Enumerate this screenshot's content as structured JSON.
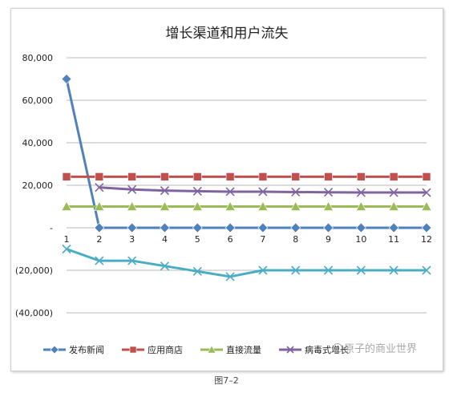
{
  "caption": "图7–2",
  "watermark_text": "原子的商业世界",
  "colors": {
    "background": "#ffffff",
    "grid": "#b8b8b8",
    "axis_text": "#222222"
  },
  "chart_data": {
    "type": "line",
    "title": "增长渠道和用户流失",
    "xlabel": "",
    "ylabel": "",
    "x": [
      1,
      2,
      3,
      4,
      5,
      6,
      7,
      8,
      9,
      10,
      11,
      12
    ],
    "x_tick_labels": [
      "1",
      "2",
      "3",
      "4",
      "5",
      "6",
      "7",
      "8",
      "9",
      "10",
      "11",
      "12"
    ],
    "ylim": [
      -40000,
      80000
    ],
    "y_ticks": [
      80000,
      60000,
      40000,
      20000,
      0,
      -20000,
      -40000
    ],
    "y_tick_labels": [
      "80,000",
      "60,000",
      "40,000",
      "20,000",
      "-",
      "(20,000)",
      "(40,000)"
    ],
    "grid": true,
    "legend_position": "bottom",
    "series": [
      {
        "name": "发布新闻",
        "color": "#4f81bd",
        "marker": "diamond",
        "values": [
          70000,
          0,
          0,
          0,
          0,
          0,
          0,
          0,
          0,
          0,
          0,
          0
        ]
      },
      {
        "name": "应用商店",
        "color": "#c0504d",
        "marker": "square",
        "values": [
          24000,
          24000,
          24000,
          24000,
          24000,
          24000,
          24000,
          24000,
          24000,
          24000,
          24000,
          24000
        ]
      },
      {
        "name": "直接流量",
        "color": "#9bbb59",
        "marker": "triangle",
        "values": [
          10000,
          10000,
          10000,
          10000,
          10000,
          10000,
          10000,
          10000,
          10000,
          10000,
          10000,
          10000
        ]
      },
      {
        "name": "病毒式增长",
        "color": "#8064a2",
        "marker": "x",
        "values": [
          null,
          19000,
          18000,
          17500,
          17200,
          17000,
          17000,
          16800,
          16700,
          16600,
          16600,
          16600
        ]
      },
      {
        "name": "",
        "color": "#4bacc6",
        "marker": "x",
        "values": [
          -10000,
          -15500,
          -15500,
          -18000,
          -20500,
          -23000,
          -20000,
          -20000,
          -20000,
          -20000,
          -20000,
          -20000
        ]
      }
    ]
  }
}
